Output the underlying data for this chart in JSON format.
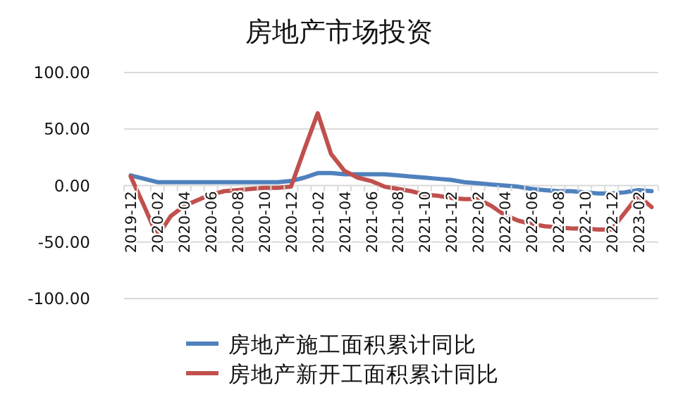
{
  "chart_data": {
    "type": "line",
    "title": "房地产市场投资",
    "categories": [
      "2019-12",
      null,
      "2020-02",
      null,
      "2020-04",
      null,
      "2020-06",
      null,
      "2020-08",
      null,
      "2020-10",
      null,
      "2020-12",
      null,
      "2021-02",
      null,
      "2021-04",
      null,
      "2021-06",
      null,
      "2021-08",
      null,
      "2021-10",
      null,
      "2021-12",
      null,
      "2022-02",
      null,
      "2022-04",
      null,
      "2022-06",
      null,
      "2022-08",
      null,
      "2022-10",
      null,
      "2022-12",
      null,
      "2023-02",
      null
    ],
    "series": [
      {
        "name": "房地产施工面积累计同比",
        "color": "#4f81bd",
        "values": [
          9,
          6,
          3,
          3,
          3,
          3,
          3,
          3,
          3,
          3,
          3,
          3,
          4,
          7,
          11,
          11,
          10,
          10,
          10,
          10,
          9,
          8,
          7,
          6,
          5,
          3,
          2,
          1,
          0,
          -1,
          -3,
          -4,
          -5,
          -5,
          -6,
          -7,
          -7,
          -6,
          -4,
          -5
        ]
      },
      {
        "name": "房地产新开工面积累计同比",
        "color": "#c0504d",
        "values": [
          8,
          -18,
          -45,
          -27,
          -18,
          -13,
          -8,
          -5,
          -4,
          -3,
          -2,
          -2,
          -1,
          32,
          64,
          28,
          13,
          7,
          4,
          -1,
          -3,
          -5,
          -8,
          -9,
          -11,
          -12,
          -12,
          -18,
          -26,
          -31,
          -34,
          -36,
          -37,
          -38,
          -38,
          -39,
          -39,
          -24,
          -9,
          -19
        ]
      }
    ],
    "ylim": [
      -100,
      100
    ],
    "yticks": [
      {
        "value": -100,
        "label": "-100.00"
      },
      {
        "value": -50,
        "label": "-50.00"
      },
      {
        "value": 0,
        "label": "0.00"
      },
      {
        "value": 50,
        "label": "50.00"
      },
      {
        "value": 100,
        "label": "100.00"
      }
    ],
    "grid": "y",
    "legend": "bottom"
  }
}
